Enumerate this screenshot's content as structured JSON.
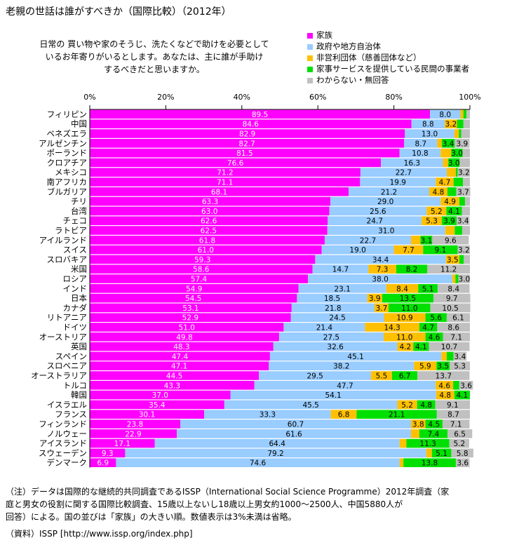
{
  "title": "老親の世話は誰がすべきか（国際比較）（2012年）",
  "question": "日常の 買い物や家のそうじ、洗たくなどで助けを必要として\nいるお年寄りがいるとします。あなたは、主に誰が手助け\nするべきだと思いますか。",
  "note": "（注）データは国際的な継続的共同調査であるISSP（International Social Science Programme）2012年調査（家\n庭と男女の役割に関する国際比較調査、15歳以上ないし18歳以上男女約1000～2500人、中国5880人が\n回答）による。国の並びは「家族」の大きい順。数値表示は3%未満は省略。",
  "source": "（資料）ISSP [http://www.issp.org/index.php]",
  "colors": {
    "family": "#ff00ff",
    "government": "#99ccff",
    "nonprofit": "#ffc000",
    "private": "#00e000",
    "unknown": "#c0c0c0"
  },
  "chart_data": {
    "type": "bar",
    "orientation": "horizontal",
    "stacked": true,
    "xlim": [
      0,
      100
    ],
    "x_ticks": [
      "0%",
      "20%",
      "40%",
      "60%",
      "80%",
      "100%"
    ],
    "grid": false,
    "legend_position": "top-right",
    "label_threshold_percent": 3,
    "categories": [
      "フィリピン",
      "中国",
      "ベネズエラ",
      "アルゼンチン",
      "ポーランド",
      "クロアチア",
      "メキシコ",
      "南アフリカ",
      "ブルガリア",
      "チリ",
      "台湾",
      "チェコ",
      "ラトビア",
      "アイルランド",
      "スイス",
      "スロバキア",
      "米国",
      "ロシア",
      "インド",
      "日本",
      "カナダ",
      "リトアニア",
      "ドイツ",
      "オーストリア",
      "英国",
      "スペイン",
      "スロベニア",
      "オーストラリア",
      "トルコ",
      "韓国",
      "イスラエル",
      "フランス",
      "フィンランド",
      "ノルウェー",
      "アイスランド",
      "スウェーデン",
      "デンマーク"
    ],
    "series": [
      {
        "name": "家族",
        "key": "family",
        "values": [
          89.5,
          84.6,
          82.9,
          82.7,
          81.5,
          76.6,
          71.2,
          71.1,
          68.1,
          63.3,
          63.0,
          62.6,
          62.5,
          61.8,
          61.0,
          59.3,
          58.6,
          57.4,
          54.9,
          54.5,
          53.1,
          52.9,
          51.0,
          49.8,
          48.3,
          47.4,
          47.1,
          44.5,
          43.3,
          37.0,
          35.4,
          30.1,
          23.8,
          22.9,
          17.1,
          9.3,
          6.9
        ]
      },
      {
        "name": "政府や地方自治体",
        "key": "government",
        "values": [
          8.0,
          8.8,
          13.0,
          8.7,
          10.8,
          16.3,
          22.7,
          19.9,
          21.2,
          29.0,
          25.6,
          24.7,
          31.0,
          22.7,
          19.0,
          34.4,
          14.7,
          38.0,
          23.1,
          18.5,
          21.8,
          24.5,
          21.4,
          27.5,
          32.6,
          45.1,
          38.2,
          29.5,
          47.7,
          54.1,
          45.5,
          33.3,
          60.7,
          61.6,
          64.4,
          79.2,
          74.6
        ]
      },
      {
        "name": "非営利団体（慈善団体など）",
        "key": "nonprofit",
        "values": [
          0.8,
          3.2,
          1.2,
          1.2,
          2.8,
          1.4,
          2.4,
          4.7,
          4.8,
          4.9,
          5.2,
          5.3,
          2.5,
          2.5,
          7.7,
          3.5,
          7.3,
          0.8,
          8.4,
          3.9,
          3.7,
          10.9,
          14.3,
          11.0,
          4.2,
          1.4,
          5.9,
          5.5,
          4.6,
          4.8,
          5.2,
          6.8,
          3.8,
          2.2,
          1.8,
          1.5,
          1.0
        ]
      },
      {
        "name": "家事サービスを提供している民間の事業者",
        "key": "private",
        "values": [
          0.8,
          1.7,
          0.6,
          3.4,
          3.0,
          3.0,
          0.5,
          2.5,
          2.3,
          1.5,
          4.1,
          3.9,
          2.0,
          3.1,
          9.1,
          1.2,
          8.2,
          0.8,
          5.1,
          13.5,
          11.0,
          5.6,
          4.7,
          4.6,
          4.1,
          1.8,
          3.5,
          6.7,
          1.6,
          4.1,
          4.8,
          21.1,
          4.5,
          7.4,
          11.3,
          5.1,
          13.8
        ]
      },
      {
        "name": "わからない・無回答",
        "key": "unknown",
        "values": [
          0.9,
          1.7,
          2.3,
          3.9,
          1.9,
          2.7,
          3.2,
          1.8,
          3.7,
          1.3,
          2.1,
          3.4,
          2.0,
          9.6,
          3.2,
          1.6,
          11.2,
          3.0,
          8.4,
          9.7,
          10.5,
          6.1,
          8.6,
          7.1,
          10.7,
          3.4,
          5.3,
          13.7,
          3.6,
          0.0,
          9.1,
          8.7,
          7.1,
          6.5,
          5.2,
          5.8,
          3.6
        ]
      }
    ]
  }
}
